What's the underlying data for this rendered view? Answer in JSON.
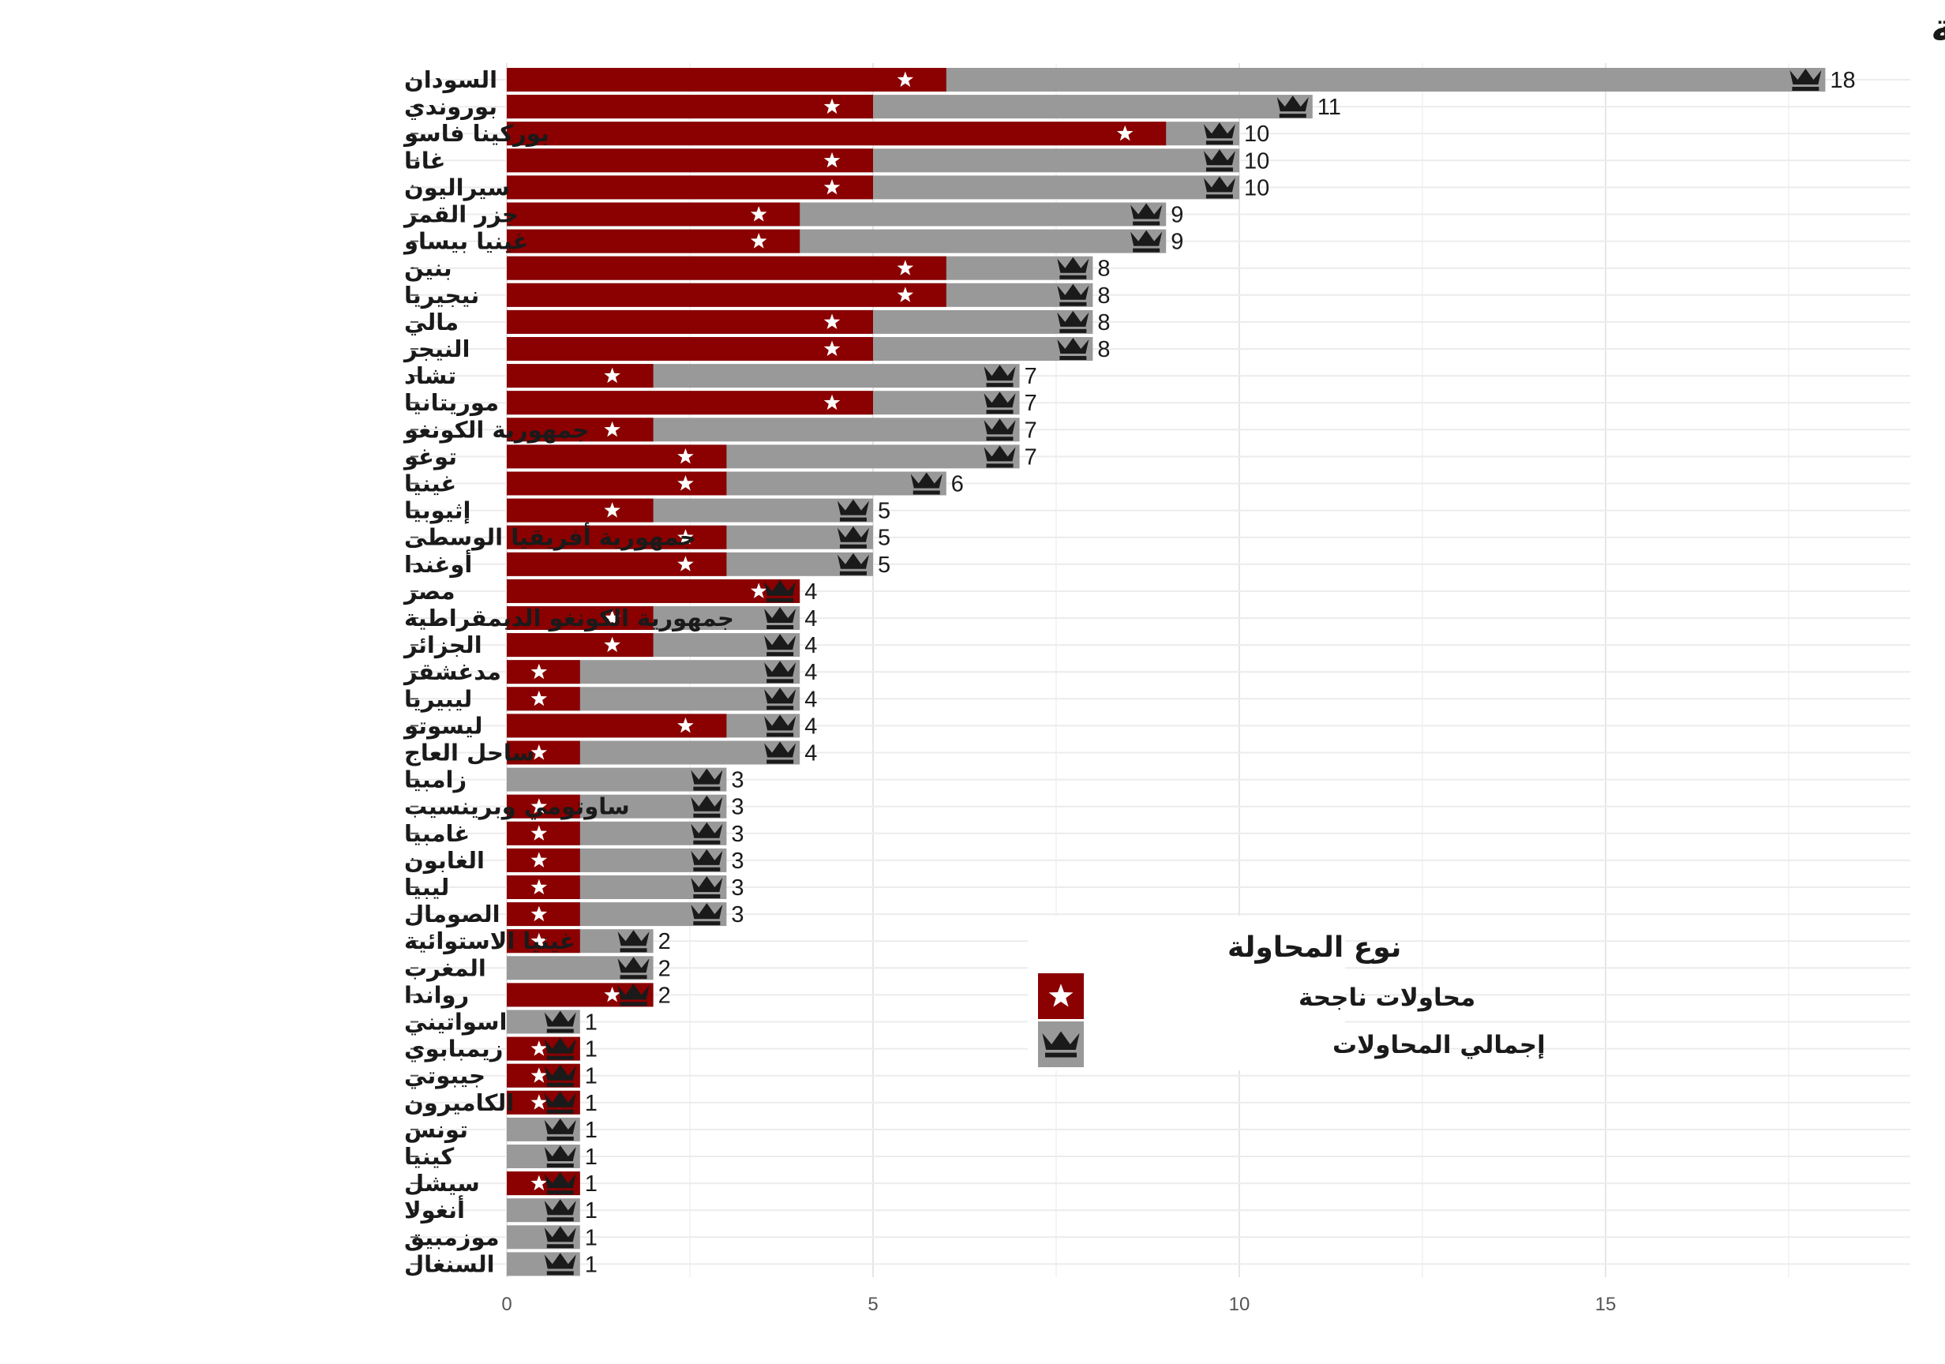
{
  "chart_data": {
    "type": "bar",
    "title": "عدد محاولات الانقلاب: نظرة تاريخية",
    "xlabel": "",
    "ylabel": "",
    "xlim": [
      0,
      19
    ],
    "x_ticks": [
      "0",
      "5",
      "10",
      "15"
    ],
    "grid": true,
    "orientation": "horizontal",
    "legend": {
      "title": "نوع المحاولة",
      "position": "center-right",
      "entries": [
        {
          "name": "محاولات ناجحة",
          "icon": "star-icon",
          "color": "#8b0000"
        },
        {
          "name": "إجمالي المحاولات",
          "icon": "crown-icon",
          "color": "#999999"
        }
      ]
    },
    "series": [
      {
        "name": "إجمالي المحاولات",
        "color": "#999999"
      },
      {
        "name": "محاولات ناجحة",
        "color": "#8b0000"
      }
    ],
    "categories": [
      "السودان",
      "بوروندي",
      "بوركينا فاسو",
      "غانا",
      "سيراليون",
      "جزر القمر",
      "غينيا بيساو",
      "بنين",
      "نيجيريا",
      "مالي",
      "النيجر",
      "تشاد",
      "موريتانيا",
      "جمهورية الكونغو",
      "توغو",
      "غينيا",
      "إثيوبيا",
      "جمهورية أفريقيا الوسطى",
      "أوغندا",
      "مصر",
      "جمهورية الكونغو الديمقراطية",
      "الجزائر",
      "مدغشقر",
      "ليبيريا",
      "ليسوتو",
      "ساحل العاج",
      "زامبيا",
      "ساوتومي وبرينسيب",
      "غامبيا",
      "الغابون",
      "ليبيا",
      "الصومال",
      "غينيا الاستوائية",
      "المغرب",
      "رواندا",
      "اسواتيني",
      "زيمبابوي",
      "جيبوتي",
      "الكاميرون",
      "تونس",
      "كينيا",
      "سيشل",
      "أنغولا",
      "موزمبيق",
      "السنغال"
    ],
    "total_attempts": [
      18,
      11,
      10,
      10,
      10,
      9,
      9,
      8,
      8,
      8,
      8,
      7,
      7,
      7,
      7,
      6,
      5,
      5,
      5,
      4,
      4,
      4,
      4,
      4,
      4,
      4,
      3,
      3,
      3,
      3,
      3,
      3,
      2,
      2,
      2,
      1,
      1,
      1,
      1,
      1,
      1,
      1,
      1,
      1,
      1
    ],
    "successful_attempts": [
      6,
      5,
      9,
      5,
      5,
      4,
      4,
      6,
      6,
      5,
      5,
      2,
      5,
      2,
      3,
      3,
      2,
      3,
      3,
      4,
      2,
      2,
      1,
      1,
      3,
      1,
      0,
      1,
      1,
      1,
      1,
      1,
      1,
      0,
      2,
      0,
      1,
      1,
      1,
      0,
      0,
      1,
      0,
      0,
      0
    ],
    "value_labels": [
      "18",
      "11",
      "10",
      "10",
      "10",
      "9",
      "9",
      "8",
      "8",
      "8",
      "8",
      "7",
      "7",
      "7",
      "7",
      "6",
      "5",
      "5",
      "5",
      "4",
      "4",
      "4",
      "4",
      "4",
      "4",
      "4",
      "3",
      "3",
      "3",
      "3",
      "3",
      "3",
      "2",
      "2",
      "2",
      "1",
      "1",
      "1",
      "1",
      "1",
      "1",
      "1",
      "1",
      "1",
      "1"
    ]
  }
}
